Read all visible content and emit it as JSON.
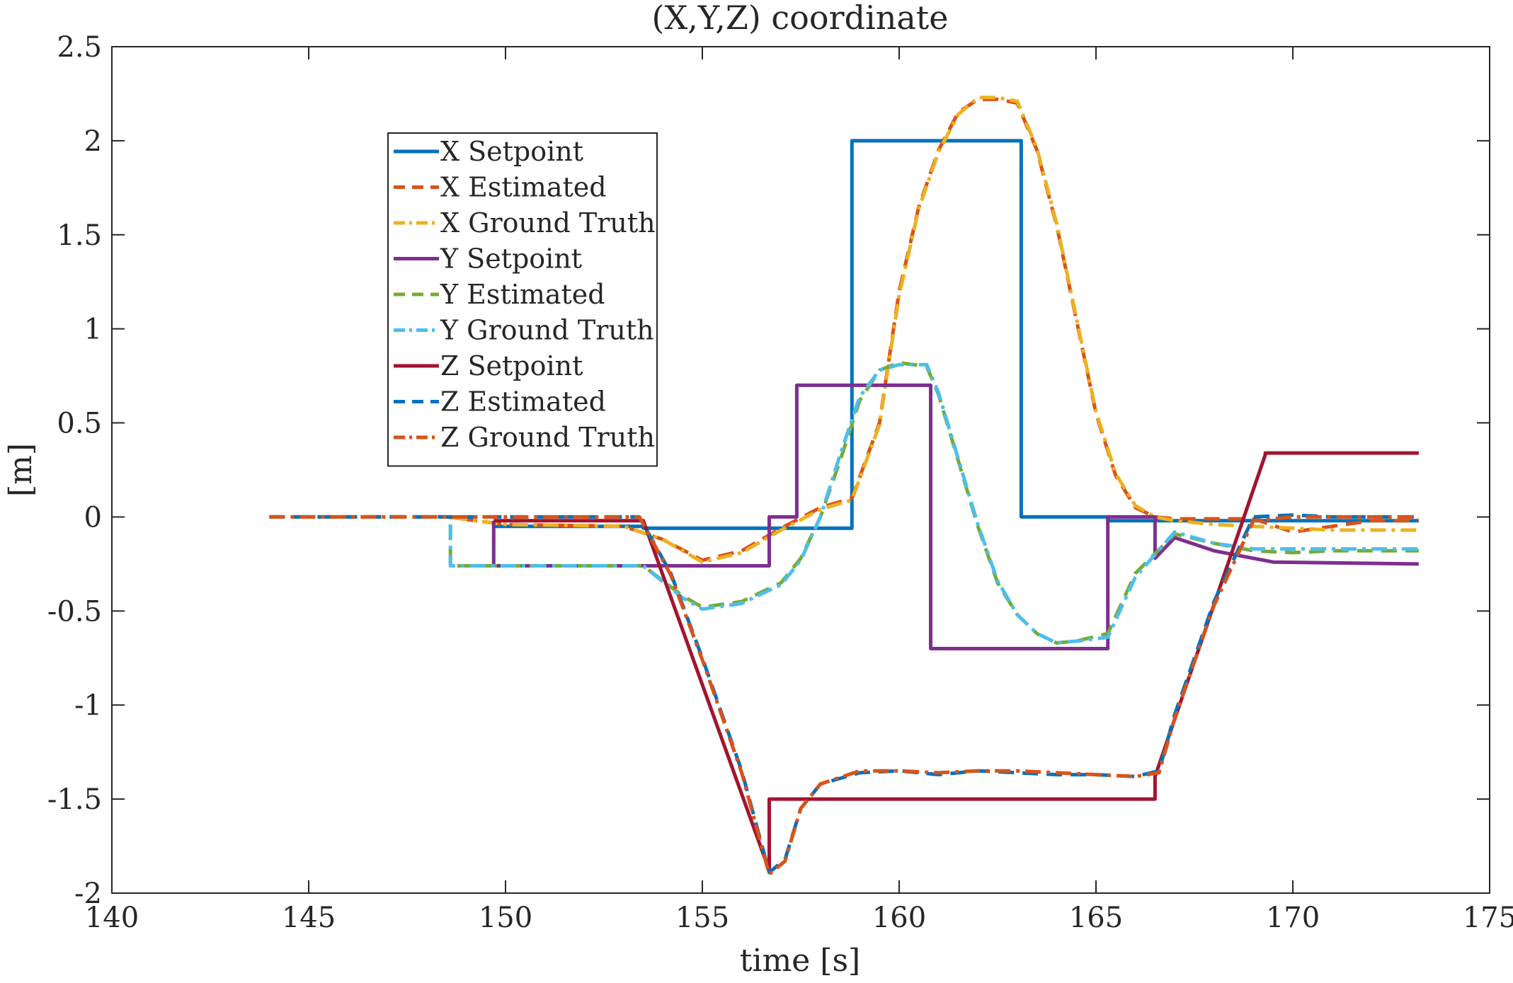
{
  "chart_data": {
    "type": "line",
    "title": "(X,Y,Z) coordinate",
    "xlabel": "time [s]",
    "ylabel": "[m]",
    "xlim": [
      140,
      175
    ],
    "ylim": [
      -2,
      2.5
    ],
    "xticks": [
      140,
      145,
      150,
      155,
      160,
      165,
      170,
      175
    ],
    "yticks": [
      -2,
      -1.5,
      -1,
      -0.5,
      0,
      0.5,
      1,
      1.5,
      2,
      2.5
    ],
    "xtick_labels": [
      "140",
      "145",
      "150",
      "155",
      "160",
      "165",
      "170",
      "175"
    ],
    "ytick_labels": [
      "-2",
      "-1.5",
      "-1",
      "-0.5",
      "0",
      "0.5",
      "1",
      "1.5",
      "2",
      "2.5"
    ],
    "grid": false,
    "legend_position": "top-left",
    "series": [
      {
        "name": "X Setpoint",
        "color": "#0072BD",
        "style": "solid",
        "x": [
          149.7,
          153.5,
          153.5,
          158.8,
          158.8,
          163.1,
          163.1,
          165.3,
          165.3,
          169.5,
          173.2
        ],
        "y": [
          -0.05,
          -0.05,
          -0.06,
          -0.06,
          2.0,
          2.0,
          0.0,
          0.0,
          -0.02,
          -0.02,
          -0.02
        ]
      },
      {
        "name": "X Estimated",
        "color": "#D95319",
        "style": "dashed",
        "x": [
          144,
          148.5,
          150,
          153,
          154,
          155,
          156,
          157,
          158,
          158.8,
          159.5,
          160,
          160.5,
          161,
          161.5,
          162,
          162.5,
          163,
          163.5,
          164,
          164.5,
          165,
          165.5,
          166,
          166.5,
          167,
          168,
          169,
          170,
          171,
          172,
          173.2
        ],
        "y": [
          0,
          0,
          -0.04,
          -0.05,
          -0.12,
          -0.23,
          -0.18,
          -0.06,
          0.05,
          0.1,
          0.5,
          1.2,
          1.65,
          1.95,
          2.15,
          2.22,
          2.22,
          2.2,
          1.95,
          1.55,
          1.05,
          0.55,
          0.22,
          0.05,
          0.0,
          -0.01,
          -0.01,
          -0.01,
          -0.08,
          -0.05,
          -0.02,
          -0.02
        ]
      },
      {
        "name": "X Ground Truth",
        "color": "#EDB120",
        "style": "dashdot",
        "x": [
          144,
          148.5,
          150,
          153,
          154,
          155,
          156,
          157,
          158,
          158.8,
          159.5,
          160,
          160.5,
          161,
          161.5,
          162,
          162.5,
          163,
          163.5,
          164,
          164.5,
          165,
          165.5,
          166,
          166.5,
          167,
          168,
          169,
          170,
          171,
          172,
          173.2
        ],
        "y": [
          0,
          0,
          -0.04,
          -0.05,
          -0.12,
          -0.24,
          -0.19,
          -0.07,
          0.04,
          0.09,
          0.49,
          1.18,
          1.64,
          1.94,
          2.14,
          2.23,
          2.23,
          2.21,
          1.96,
          1.56,
          1.06,
          0.56,
          0.23,
          0.06,
          0.0,
          -0.02,
          -0.04,
          -0.05,
          -0.06,
          -0.07,
          -0.07,
          -0.07
        ]
      },
      {
        "name": "Y Setpoint",
        "color": "#7E2F8E",
        "style": "solid",
        "x": [
          149.7,
          149.7,
          156.7,
          156.7,
          157.4,
          157.4,
          160.8,
          160.8,
          165.3,
          165.3,
          166.5,
          166.5,
          167,
          168,
          169.5,
          173.2
        ],
        "y": [
          -0.02,
          -0.26,
          -0.26,
          0.0,
          0.0,
          0.7,
          0.7,
          -0.7,
          -0.7,
          0.0,
          0.0,
          -0.22,
          -0.11,
          -0.18,
          -0.24,
          -0.25
        ]
      },
      {
        "name": "Y Estimated",
        "color": "#77AC30",
        "style": "dashed",
        "x": [
          148.6,
          148.6,
          150,
          152,
          153.5,
          154.5,
          155,
          156,
          157,
          157.5,
          158,
          158.5,
          159,
          159.5,
          160,
          160.7,
          161,
          161.5,
          162,
          162.5,
          163,
          163.5,
          164,
          164.5,
          165.3,
          166,
          167,
          168,
          169,
          170,
          171,
          173.2
        ],
        "y": [
          -0.04,
          -0.26,
          -0.26,
          -0.26,
          -0.26,
          -0.42,
          -0.48,
          -0.45,
          -0.35,
          -0.22,
          0.0,
          0.3,
          0.62,
          0.78,
          0.82,
          0.8,
          0.65,
          0.3,
          -0.05,
          -0.35,
          -0.52,
          -0.62,
          -0.67,
          -0.66,
          -0.62,
          -0.3,
          -0.09,
          -0.14,
          -0.18,
          -0.19,
          -0.18,
          -0.18
        ]
      },
      {
        "name": "Y Ground Truth",
        "color": "#4DBEEE",
        "style": "dashdot",
        "x": [
          148.6,
          148.6,
          150,
          152,
          153.5,
          154.5,
          155,
          156,
          157,
          157.5,
          158,
          158.5,
          159,
          159.5,
          160,
          160.7,
          161,
          161.5,
          162,
          162.5,
          163,
          163.5,
          164,
          164.5,
          165.3,
          166,
          167,
          168,
          169,
          170,
          171,
          173.2
        ],
        "y": [
          -0.04,
          -0.26,
          -0.26,
          -0.26,
          -0.26,
          -0.43,
          -0.49,
          -0.46,
          -0.36,
          -0.23,
          0.0,
          0.33,
          0.64,
          0.78,
          0.81,
          0.81,
          0.66,
          0.31,
          -0.04,
          -0.34,
          -0.52,
          -0.62,
          -0.67,
          -0.66,
          -0.64,
          -0.32,
          -0.08,
          -0.14,
          -0.17,
          -0.17,
          -0.17,
          -0.17
        ]
      },
      {
        "name": "Z Setpoint",
        "color": "#A2142F",
        "style": "solid",
        "x": [
          149.7,
          153.5,
          156.7,
          156.7,
          166.5,
          166.5,
          169.3,
          169.3,
          173.2
        ],
        "y": [
          -0.02,
          -0.02,
          -1.88,
          -1.5,
          -1.5,
          -1.38,
          0.33,
          0.34,
          0.34
        ]
      },
      {
        "name": "Z Estimated",
        "color": "#0072BD",
        "style": "dashed",
        "x": [
          144,
          150,
          153.4,
          154.2,
          155,
          156,
          156.7,
          157.1,
          157.5,
          158,
          159,
          160,
          161,
          162,
          163,
          164,
          165,
          166,
          166.6,
          167,
          168,
          169,
          170,
          171,
          173.2
        ],
        "y": [
          0,
          0,
          0,
          -0.3,
          -0.75,
          -1.35,
          -1.89,
          -1.82,
          -1.55,
          -1.42,
          -1.36,
          -1.35,
          -1.37,
          -1.35,
          -1.36,
          -1.37,
          -1.37,
          -1.38,
          -1.35,
          -1.05,
          -0.45,
          0.0,
          0.01,
          0.0,
          0.0
        ]
      },
      {
        "name": "Z Ground Truth",
        "color": "#D95319",
        "style": "dashdot",
        "x": [
          144,
          150,
          153.4,
          154.2,
          155,
          156,
          156.7,
          157.1,
          157.5,
          158,
          159,
          160,
          161,
          162,
          163,
          164,
          165,
          166,
          166.6,
          167,
          168,
          169,
          170,
          171,
          173.2
        ],
        "y": [
          0,
          0,
          0,
          -0.31,
          -0.76,
          -1.36,
          -1.9,
          -1.83,
          -1.55,
          -1.42,
          -1.35,
          -1.35,
          -1.36,
          -1.35,
          -1.35,
          -1.36,
          -1.37,
          -1.38,
          -1.36,
          -1.07,
          -0.47,
          -0.02,
          0.0,
          0.0,
          0.0
        ]
      }
    ]
  }
}
